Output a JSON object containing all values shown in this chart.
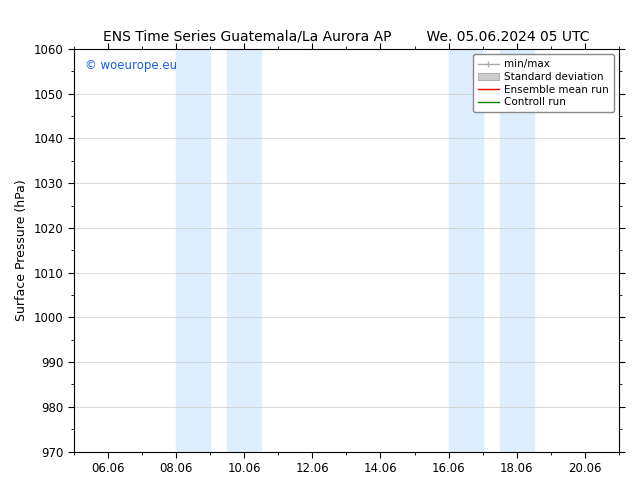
{
  "title_left": "ENS Time Series Guatemala/La Aurora AP",
  "title_right": "We. 05.06.2024 05 UTC",
  "ylabel": "Surface Pressure (hPa)",
  "ylim": [
    970,
    1060
  ],
  "yticks": [
    970,
    980,
    990,
    1000,
    1010,
    1020,
    1030,
    1040,
    1050,
    1060
  ],
  "xtick_labels": [
    "06.06",
    "08.06",
    "10.06",
    "12.06",
    "14.06",
    "16.06",
    "18.06",
    "20.06"
  ],
  "xtick_positions": [
    6,
    8,
    10,
    12,
    14,
    16,
    18,
    20
  ],
  "xlim": [
    5,
    21
  ],
  "shaded_bands": [
    {
      "x_start": 8.0,
      "x_end": 9.0
    },
    {
      "x_start": 9.5,
      "x_end": 10.5
    },
    {
      "x_start": 16.0,
      "x_end": 17.0
    },
    {
      "x_start": 17.5,
      "x_end": 18.5
    }
  ],
  "shaded_color": "#ddeeff",
  "watermark_text": "© woeurope.eu",
  "watermark_color": "#1a5fe6",
  "legend_entries": [
    {
      "label": "min/max"
    },
    {
      "label": "Standard deviation"
    },
    {
      "label": "Ensemble mean run"
    },
    {
      "label": "Controll run"
    }
  ],
  "legend_colors": [
    "#aaaaaa",
    "#cccccc",
    "#ff0000",
    "#008000"
  ],
  "bg_color": "#ffffff",
  "grid_color": "#cccccc",
  "title_fontsize": 10,
  "axis_label_fontsize": 9,
  "tick_fontsize": 8.5
}
